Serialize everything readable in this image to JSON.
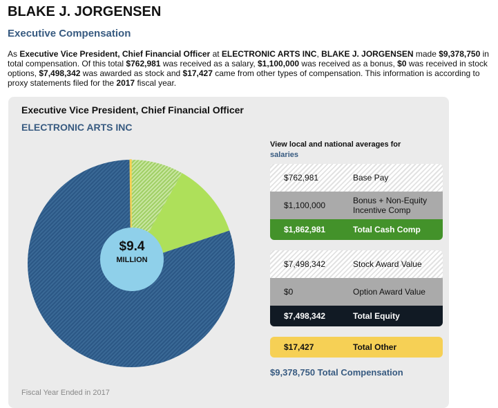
{
  "name": "BLAKE J. JORGENSEN",
  "section": "Executive Compensation",
  "intro": {
    "p1": "As ",
    "title": "Executive Vice President, Chief Financial Officer",
    "p2": " at ",
    "company": "ELECTRONIC ARTS INC",
    "p3": ", ",
    "name": "BLAKE J. JORGENSEN",
    "p4": " made ",
    "total": "$9,378,750",
    "p5": " in total compensation. Of this total ",
    "salary": "$762,981",
    "p6": " was received as a salary, ",
    "bonus": "$1,100,000",
    "p7": " was received as a bonus, ",
    "options": "$0",
    "p8": " was received in stock options, ",
    "stock": "$7,498,342",
    "p9": " was awarded as stock and ",
    "other": "$17,427",
    "p10": " came from other types of compensation. This information is according to proxy statements filed for the ",
    "year": "2017",
    "p11": " fiscal year."
  },
  "card": {
    "title": "Executive Vice President, Chief Financial Officer",
    "company": "ELECTRONIC ARTS INC",
    "center_value": "$9.4",
    "center_unit": "MILLION",
    "fiscal": "Fiscal Year Ended in 2017",
    "view_text": "View local and national averages for",
    "view_link": "salaries",
    "cash": [
      {
        "value": "$762,981",
        "label": "Base Pay"
      },
      {
        "value": "$1,100,000",
        "label": "Bonus + Non-Equity Incentive Comp"
      },
      {
        "value": "$1,862,981",
        "label": "Total Cash Comp"
      }
    ],
    "equity": [
      {
        "value": "$7,498,342",
        "label": "Stock Award Value"
      },
      {
        "value": "$0",
        "label": "Option Award Value"
      },
      {
        "value": "$7,498,342",
        "label": "Total Equity"
      }
    ],
    "other": {
      "value": "$17,427",
      "label": "Total Other"
    },
    "total": "$9,378,750 Total Compensation"
  },
  "chart_data": {
    "type": "pie",
    "slices": [
      {
        "name": "Base Pay",
        "value": 762981,
        "color": "#b5dc83",
        "pattern": "hatch"
      },
      {
        "name": "Bonus + Non-Equity Incentive Comp",
        "value": 1100000,
        "color": "#aee05a"
      },
      {
        "name": "Stock Award Value",
        "value": 7498342,
        "color": "#33608f",
        "pattern": "hatch"
      },
      {
        "name": "Option Award Value",
        "value": 0,
        "color": "#aaaaaa"
      },
      {
        "name": "Total Other",
        "value": 17427,
        "color": "#f6d055"
      }
    ]
  }
}
